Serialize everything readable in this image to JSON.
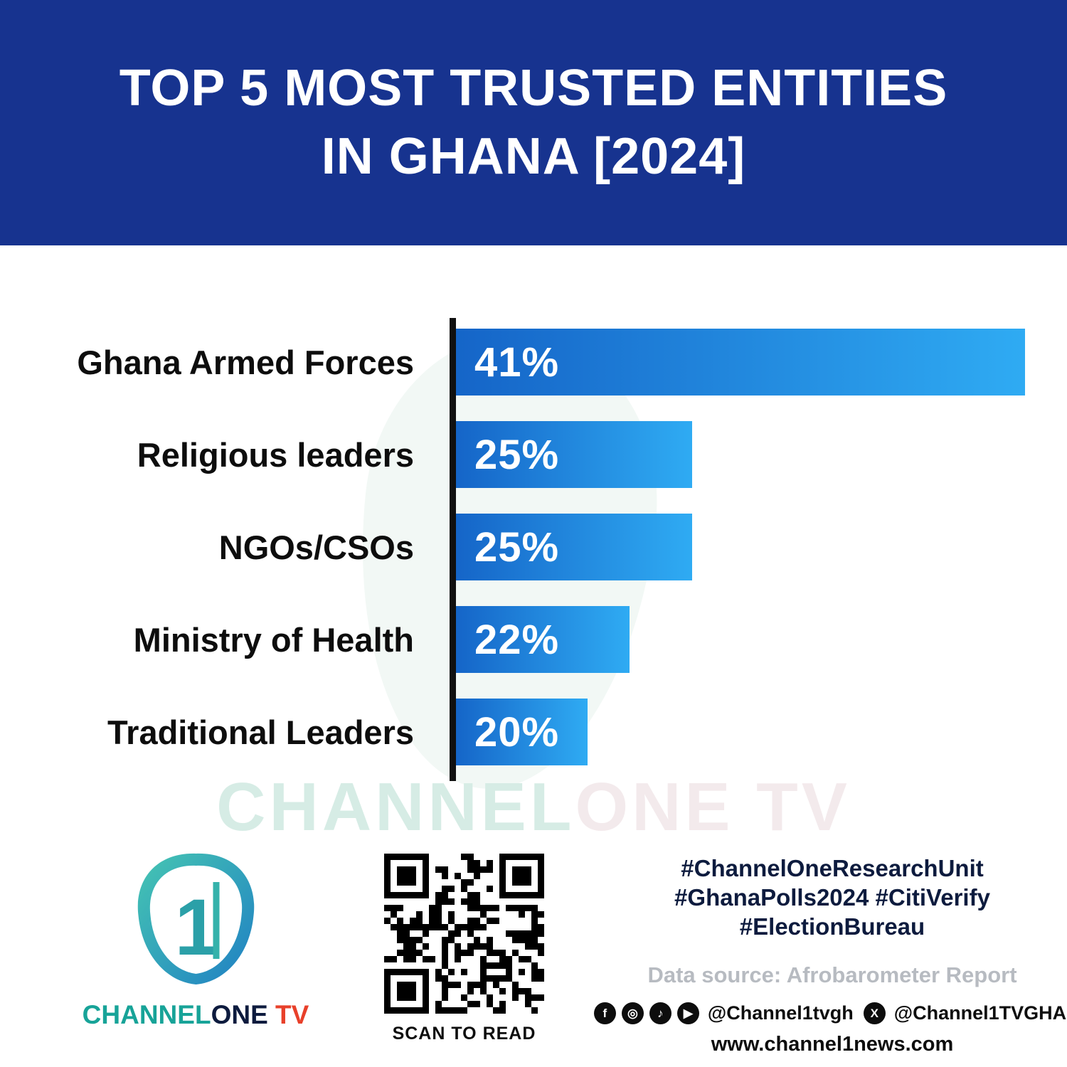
{
  "header": {
    "title_line1": "TOP 5 MOST TRUSTED ENTITIES",
    "title_line2": "IN GHANA [2024]"
  },
  "chart_data": {
    "type": "bar",
    "orientation": "horizontal",
    "title": "TOP 5 MOST TRUSTED ENTITIES IN GHANA [2024]",
    "categories": [
      "Ghana Armed Forces",
      "Religious leaders",
      "NGOs/CSOs",
      "Ministry of Health",
      "Traditional Leaders"
    ],
    "values": [
      41,
      25,
      25,
      22,
      20
    ],
    "value_labels": [
      "41%",
      "25%",
      "25%",
      "22%",
      "20%"
    ],
    "xlabel": "",
    "ylabel": "",
    "legend": false,
    "grid": false,
    "bar_gradient_start": "#1565c8",
    "bar_gradient_end": "#2fabf3",
    "axis_color": "#101010"
  },
  "watermark": {
    "part1": "CHANNEL",
    "part2": "ONE TV"
  },
  "footer": {
    "logo": {
      "channel": "CHANNEL",
      "one": "ONE",
      "tv": " TV",
      "numeral": "1"
    },
    "qr_caption": "SCAN TO READ",
    "hashtags_line1": "#ChannelOneResearchUnit",
    "hashtags_line2": "#GhanaPolls2024 #CitiVerify",
    "hashtags_line3": "#ElectionBureau",
    "data_source": "Data source: Afrobarometer Report",
    "social": {
      "facebook_icon": "f",
      "instagram_icon": "◎",
      "tiktok_icon": "♪",
      "youtube_icon": "▶",
      "x_icon": "X",
      "handle1": "@Channel1tvgh",
      "handle2": "@Channel1TVGHA"
    },
    "website": "www.channel1news.com"
  },
  "colors": {
    "header_background": "#17338f",
    "title_text": "#ffffff",
    "hashtag_text": "#0d1b3e",
    "data_source_text": "#b7bbc1",
    "logo_teal": "#17a398",
    "logo_tv_red": "#e8402a"
  }
}
